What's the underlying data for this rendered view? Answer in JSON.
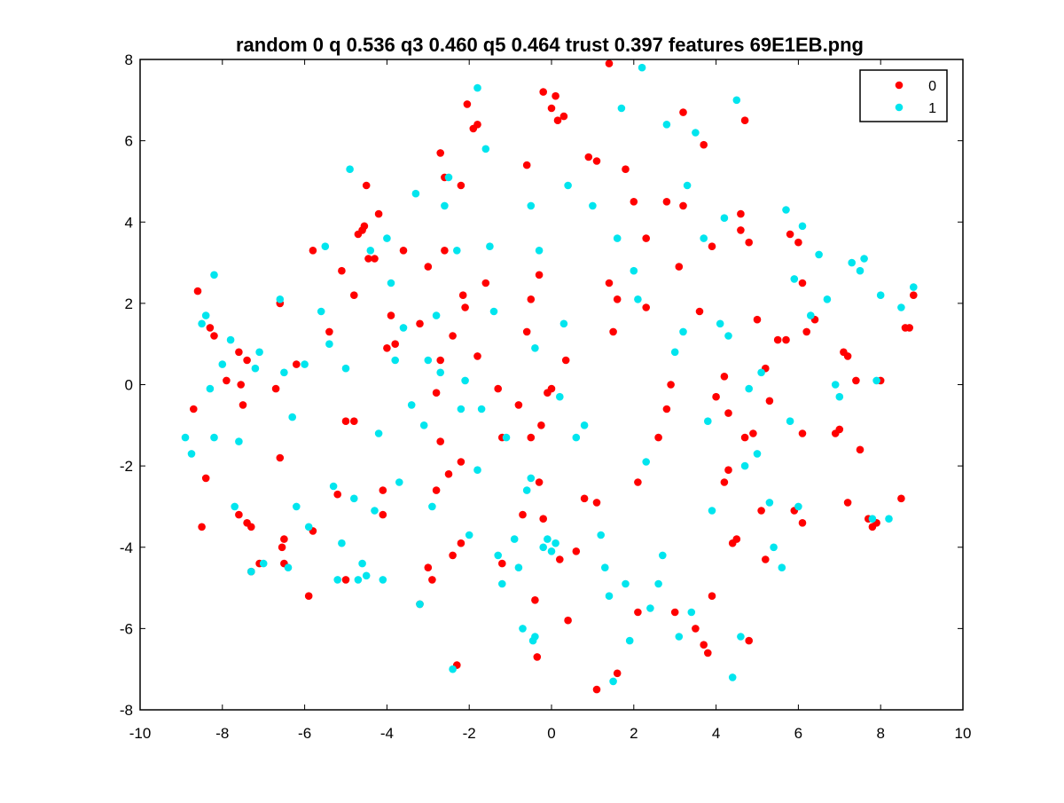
{
  "chart_data": {
    "type": "scatter",
    "title": "random 0 q 0.536 q3 0.460 q5 0.464 trust 0.397 features 69E1EB.png",
    "xlabel": "",
    "ylabel": "",
    "xlim": [
      -10,
      10
    ],
    "ylim": [
      -8,
      8
    ],
    "xticks": [
      "-10",
      "-8",
      "-6",
      "-4",
      "-2",
      "0",
      "2",
      "4",
      "6",
      "8",
      "10"
    ],
    "yticks": [
      "-8",
      "-6",
      "-4",
      "-2",
      "0",
      "2",
      "4",
      "6",
      "8"
    ],
    "grid": false,
    "legend_position": "top-right",
    "colors": {
      "0": "#ff0000",
      "1": "#00e5ee"
    },
    "series": [
      {
        "name": "0",
        "color": "#ff0000",
        "points": [
          [
            -8.7,
            -0.6
          ],
          [
            -8.6,
            2.3
          ],
          [
            -8.5,
            -3.5
          ],
          [
            -8.4,
            -2.3
          ],
          [
            -8.3,
            1.4
          ],
          [
            -8.2,
            1.2
          ],
          [
            -7.9,
            0.1
          ],
          [
            -7.6,
            0.8
          ],
          [
            -7.55,
            0.0
          ],
          [
            -7.5,
            -0.5
          ],
          [
            -7.4,
            0.6
          ],
          [
            -7.3,
            -4.6
          ],
          [
            -7.6,
            -3.2
          ],
          [
            -7.4,
            -3.4
          ],
          [
            -7.3,
            -3.5
          ],
          [
            -7.1,
            -4.4
          ],
          [
            -6.7,
            -0.1
          ],
          [
            -6.6,
            -1.8
          ],
          [
            -6.6,
            2.0
          ],
          [
            -6.55,
            -4.0
          ],
          [
            -6.5,
            -3.8
          ],
          [
            -6.5,
            -4.4
          ],
          [
            -6.2,
            0.5
          ],
          [
            -5.9,
            -5.2
          ],
          [
            -5.8,
            3.3
          ],
          [
            -5.8,
            -3.6
          ],
          [
            -5.4,
            1.3
          ],
          [
            -5.2,
            -2.7
          ],
          [
            -5.1,
            2.8
          ],
          [
            -5.0,
            -4.8
          ],
          [
            -5.0,
            -0.9
          ],
          [
            -4.8,
            -0.9
          ],
          [
            -4.8,
            2.2
          ],
          [
            -4.7,
            3.7
          ],
          [
            -4.6,
            3.8
          ],
          [
            -4.55,
            3.9
          ],
          [
            -4.5,
            4.9
          ],
          [
            -4.45,
            3.1
          ],
          [
            -4.3,
            3.1
          ],
          [
            -4.2,
            4.2
          ],
          [
            -4.1,
            -2.6
          ],
          [
            -4.1,
            -3.2
          ],
          [
            -4.0,
            0.9
          ],
          [
            -3.9,
            1.7
          ],
          [
            -3.8,
            1.0
          ],
          [
            -3.6,
            3.3
          ],
          [
            -3.2,
            1.5
          ],
          [
            -3.2,
            -5.4
          ],
          [
            -3.0,
            2.9
          ],
          [
            -3.0,
            -4.5
          ],
          [
            -2.9,
            -4.8
          ],
          [
            -2.8,
            -2.6
          ],
          [
            -2.8,
            -0.2
          ],
          [
            -2.7,
            -1.4
          ],
          [
            -2.7,
            0.6
          ],
          [
            -2.7,
            5.7
          ],
          [
            -2.6,
            5.1
          ],
          [
            -2.6,
            3.3
          ],
          [
            -2.5,
            -2.2
          ],
          [
            -2.4,
            -4.2
          ],
          [
            -2.4,
            1.2
          ],
          [
            -2.3,
            -6.9
          ],
          [
            -2.2,
            4.9
          ],
          [
            -2.2,
            -1.9
          ],
          [
            -2.2,
            -3.9
          ],
          [
            -2.15,
            2.2
          ],
          [
            -2.1,
            1.9
          ],
          [
            -2.05,
            6.9
          ],
          [
            -1.9,
            6.3
          ],
          [
            -1.8,
            0.7
          ],
          [
            -1.8,
            6.4
          ],
          [
            -1.6,
            2.5
          ],
          [
            -1.3,
            -0.1
          ],
          [
            -1.2,
            -1.3
          ],
          [
            -1.2,
            -4.4
          ],
          [
            -0.8,
            -0.5
          ],
          [
            -0.7,
            -3.2
          ],
          [
            -0.6,
            5.4
          ],
          [
            -0.6,
            1.3
          ],
          [
            -0.5,
            2.1
          ],
          [
            -0.5,
            -1.3
          ],
          [
            -0.4,
            -5.3
          ],
          [
            -0.35,
            -6.7
          ],
          [
            -0.3,
            2.7
          ],
          [
            -0.3,
            -2.4
          ],
          [
            -0.25,
            -1.0
          ],
          [
            -0.2,
            -3.3
          ],
          [
            -0.2,
            7.2
          ],
          [
            -0.1,
            -0.2
          ],
          [
            0.0,
            -0.1
          ],
          [
            0.0,
            6.8
          ],
          [
            0.1,
            7.1
          ],
          [
            0.15,
            6.5
          ],
          [
            0.2,
            -4.3
          ],
          [
            0.3,
            6.6
          ],
          [
            0.35,
            0.6
          ],
          [
            0.4,
            -5.8
          ],
          [
            0.6,
            -4.1
          ],
          [
            0.8,
            -2.8
          ],
          [
            0.9,
            5.6
          ],
          [
            1.1,
            5.5
          ],
          [
            1.1,
            -7.5
          ],
          [
            1.1,
            -2.9
          ],
          [
            1.4,
            2.5
          ],
          [
            1.5,
            1.3
          ],
          [
            1.4,
            7.9
          ],
          [
            1.6,
            -7.1
          ],
          [
            1.6,
            2.1
          ],
          [
            1.8,
            5.3
          ],
          [
            2.0,
            4.5
          ],
          [
            2.1,
            -5.6
          ],
          [
            2.1,
            -2.4
          ],
          [
            2.3,
            1.9
          ],
          [
            2.3,
            3.6
          ],
          [
            2.6,
            -1.3
          ],
          [
            2.8,
            -0.6
          ],
          [
            2.8,
            4.5
          ],
          [
            2.9,
            0.0
          ],
          [
            3.0,
            -5.6
          ],
          [
            3.1,
            2.9
          ],
          [
            3.2,
            4.4
          ],
          [
            3.2,
            6.7
          ],
          [
            3.5,
            -6.0
          ],
          [
            3.6,
            1.8
          ],
          [
            3.7,
            5.9
          ],
          [
            3.7,
            -6.4
          ],
          [
            3.8,
            -6.6
          ],
          [
            3.9,
            3.4
          ],
          [
            3.9,
            -5.2
          ],
          [
            4.0,
            -0.3
          ],
          [
            4.2,
            0.2
          ],
          [
            4.2,
            -2.4
          ],
          [
            4.3,
            -2.1
          ],
          [
            4.3,
            -0.7
          ],
          [
            4.4,
            -3.9
          ],
          [
            4.5,
            -3.8
          ],
          [
            4.6,
            4.2
          ],
          [
            4.6,
            3.8
          ],
          [
            4.7,
            6.5
          ],
          [
            4.7,
            -1.3
          ],
          [
            4.8,
            3.5
          ],
          [
            4.8,
            -6.3
          ],
          [
            4.9,
            -1.2
          ],
          [
            5.0,
            1.6
          ],
          [
            5.1,
            -3.1
          ],
          [
            5.2,
            -4.3
          ],
          [
            5.2,
            0.4
          ],
          [
            5.3,
            -0.4
          ],
          [
            5.5,
            1.1
          ],
          [
            5.7,
            1.1
          ],
          [
            5.8,
            3.7
          ],
          [
            5.9,
            -3.1
          ],
          [
            6.0,
            3.5
          ],
          [
            6.1,
            -3.4
          ],
          [
            6.1,
            2.5
          ],
          [
            6.1,
            -1.2
          ],
          [
            6.2,
            1.3
          ],
          [
            6.4,
            1.6
          ],
          [
            6.9,
            -1.2
          ],
          [
            7.0,
            -1.1
          ],
          [
            7.1,
            0.8
          ],
          [
            7.2,
            0.7
          ],
          [
            7.2,
            -2.9
          ],
          [
            7.4,
            0.1
          ],
          [
            7.5,
            -1.6
          ],
          [
            7.7,
            -3.3
          ],
          [
            7.8,
            -3.5
          ],
          [
            7.9,
            -3.4
          ],
          [
            8.0,
            0.1
          ],
          [
            8.5,
            -2.8
          ],
          [
            8.6,
            1.4
          ],
          [
            8.7,
            1.4
          ],
          [
            8.8,
            2.2
          ]
        ]
      },
      {
        "name": "1",
        "color": "#00e5ee",
        "points": [
          [
            -8.9,
            -1.3
          ],
          [
            -8.75,
            -1.7
          ],
          [
            -8.5,
            1.5
          ],
          [
            -8.4,
            1.7
          ],
          [
            -8.3,
            -0.1
          ],
          [
            -8.2,
            -1.3
          ],
          [
            -8.2,
            2.7
          ],
          [
            -8.0,
            0.5
          ],
          [
            -7.8,
            1.1
          ],
          [
            -7.7,
            -3.0
          ],
          [
            -7.6,
            -1.4
          ],
          [
            -7.3,
            -4.6
          ],
          [
            -7.2,
            0.4
          ],
          [
            -7.1,
            0.8
          ],
          [
            -7.0,
            -4.4
          ],
          [
            -6.6,
            2.1
          ],
          [
            -6.5,
            0.3
          ],
          [
            -6.4,
            -4.5
          ],
          [
            -6.3,
            -0.8
          ],
          [
            -6.2,
            -3.0
          ],
          [
            -6.0,
            0.5
          ],
          [
            -5.9,
            -3.5
          ],
          [
            -5.6,
            1.8
          ],
          [
            -5.5,
            3.4
          ],
          [
            -5.4,
            1.0
          ],
          [
            -5.3,
            -2.5
          ],
          [
            -5.2,
            -4.8
          ],
          [
            -5.1,
            -3.9
          ],
          [
            -5.0,
            0.4
          ],
          [
            -4.9,
            5.3
          ],
          [
            -4.8,
            -2.8
          ],
          [
            -4.7,
            -4.8
          ],
          [
            -4.6,
            -4.4
          ],
          [
            -4.5,
            -4.7
          ],
          [
            -4.4,
            3.3
          ],
          [
            -4.3,
            -3.1
          ],
          [
            -4.2,
            -1.2
          ],
          [
            -4.1,
            -4.8
          ],
          [
            -4.0,
            3.6
          ],
          [
            -3.9,
            2.5
          ],
          [
            -3.8,
            0.6
          ],
          [
            -3.7,
            -2.4
          ],
          [
            -3.6,
            1.4
          ],
          [
            -3.4,
            -0.5
          ],
          [
            -3.3,
            4.7
          ],
          [
            -3.2,
            -5.4
          ],
          [
            -3.1,
            -1.0
          ],
          [
            -3.0,
            0.6
          ],
          [
            -2.9,
            -3.0
          ],
          [
            -2.8,
            1.7
          ],
          [
            -2.7,
            0.3
          ],
          [
            -2.6,
            4.4
          ],
          [
            -2.5,
            5.1
          ],
          [
            -2.4,
            -7.0
          ],
          [
            -2.3,
            3.3
          ],
          [
            -2.2,
            -0.6
          ],
          [
            -2.1,
            0.1
          ],
          [
            -2.0,
            -3.7
          ],
          [
            -1.8,
            -2.1
          ],
          [
            -1.8,
            7.3
          ],
          [
            -1.7,
            -0.6
          ],
          [
            -1.6,
            5.8
          ],
          [
            -1.5,
            3.4
          ],
          [
            -1.4,
            1.8
          ],
          [
            -1.3,
            -4.2
          ],
          [
            -1.2,
            -4.9
          ],
          [
            -1.1,
            -1.3
          ],
          [
            -0.9,
            -3.8
          ],
          [
            -0.8,
            -4.5
          ],
          [
            -0.7,
            -6.0
          ],
          [
            -0.6,
            -2.6
          ],
          [
            -0.5,
            -2.3
          ],
          [
            -0.5,
            4.4
          ],
          [
            -0.45,
            -6.3
          ],
          [
            -0.4,
            -6.2
          ],
          [
            -0.4,
            0.9
          ],
          [
            -0.3,
            3.3
          ],
          [
            -0.2,
            -4.0
          ],
          [
            -0.1,
            -3.8
          ],
          [
            0.0,
            -4.1
          ],
          [
            0.1,
            -3.9
          ],
          [
            0.2,
            -0.3
          ],
          [
            0.3,
            1.5
          ],
          [
            0.4,
            4.9
          ],
          [
            0.6,
            -1.3
          ],
          [
            0.8,
            -1.0
          ],
          [
            1.0,
            4.4
          ],
          [
            1.2,
            -3.7
          ],
          [
            1.3,
            -4.5
          ],
          [
            1.4,
            -5.2
          ],
          [
            1.5,
            -7.3
          ],
          [
            1.6,
            3.6
          ],
          [
            1.7,
            6.8
          ],
          [
            1.8,
            -4.9
          ],
          [
            1.9,
            -6.3
          ],
          [
            2.0,
            2.8
          ],
          [
            2.1,
            2.1
          ],
          [
            2.2,
            7.8
          ],
          [
            2.3,
            -1.9
          ],
          [
            2.4,
            -5.5
          ],
          [
            2.6,
            -4.9
          ],
          [
            2.7,
            -4.2
          ],
          [
            2.8,
            6.4
          ],
          [
            3.0,
            0.8
          ],
          [
            3.1,
            -6.2
          ],
          [
            3.2,
            1.3
          ],
          [
            3.3,
            4.9
          ],
          [
            3.4,
            -5.6
          ],
          [
            3.5,
            6.2
          ],
          [
            3.7,
            3.6
          ],
          [
            3.8,
            -0.9
          ],
          [
            3.9,
            -3.1
          ],
          [
            4.1,
            1.5
          ],
          [
            4.2,
            4.1
          ],
          [
            4.3,
            1.2
          ],
          [
            4.4,
            -7.2
          ],
          [
            4.5,
            7.0
          ],
          [
            4.6,
            -6.2
          ],
          [
            4.7,
            -2.0
          ],
          [
            4.8,
            -0.1
          ],
          [
            5.0,
            -1.7
          ],
          [
            5.1,
            0.3
          ],
          [
            5.3,
            -2.9
          ],
          [
            5.4,
            -4.0
          ],
          [
            5.6,
            -4.5
          ],
          [
            5.7,
            4.3
          ],
          [
            5.8,
            -0.9
          ],
          [
            5.9,
            2.6
          ],
          [
            6.0,
            -3.0
          ],
          [
            6.1,
            3.9
          ],
          [
            6.3,
            1.7
          ],
          [
            6.5,
            3.2
          ],
          [
            6.7,
            2.1
          ],
          [
            6.9,
            0.0
          ],
          [
            7.0,
            -0.3
          ],
          [
            7.3,
            3.0
          ],
          [
            7.5,
            2.8
          ],
          [
            7.6,
            3.1
          ],
          [
            7.8,
            -3.3
          ],
          [
            7.9,
            0.1
          ],
          [
            8.0,
            2.2
          ],
          [
            8.2,
            -3.3
          ],
          [
            8.5,
            1.9
          ],
          [
            8.8,
            2.4
          ]
        ]
      }
    ]
  }
}
